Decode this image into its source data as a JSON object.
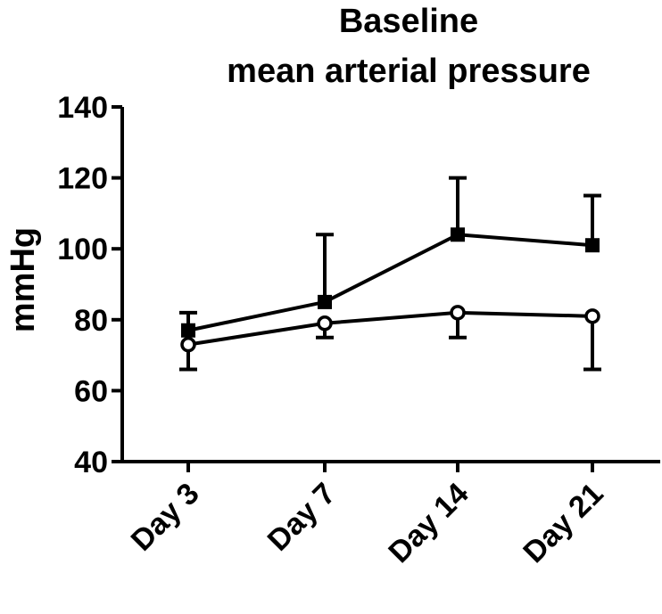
{
  "chart_data": {
    "type": "line",
    "title_lines": [
      "Baseline",
      "mean arterial pressure"
    ],
    "xlabel": "",
    "ylabel": "mmHg",
    "categories": [
      "Day 3",
      "Day 7",
      "Day 14",
      "Day 21"
    ],
    "ylim": [
      40,
      140
    ],
    "yticks": [
      40,
      60,
      80,
      100,
      120,
      140
    ],
    "grid": false,
    "legend": "none",
    "series": [
      {
        "marker": "filled-square",
        "color": "#000000",
        "values": [
          77,
          85,
          104,
          101
        ],
        "error_upper": [
          82,
          104,
          120,
          115
        ]
      },
      {
        "marker": "open-circle",
        "color": "#000000",
        "values": [
          73,
          79,
          82,
          81
        ],
        "error_lower": [
          66,
          75,
          75,
          66
        ]
      }
    ]
  }
}
